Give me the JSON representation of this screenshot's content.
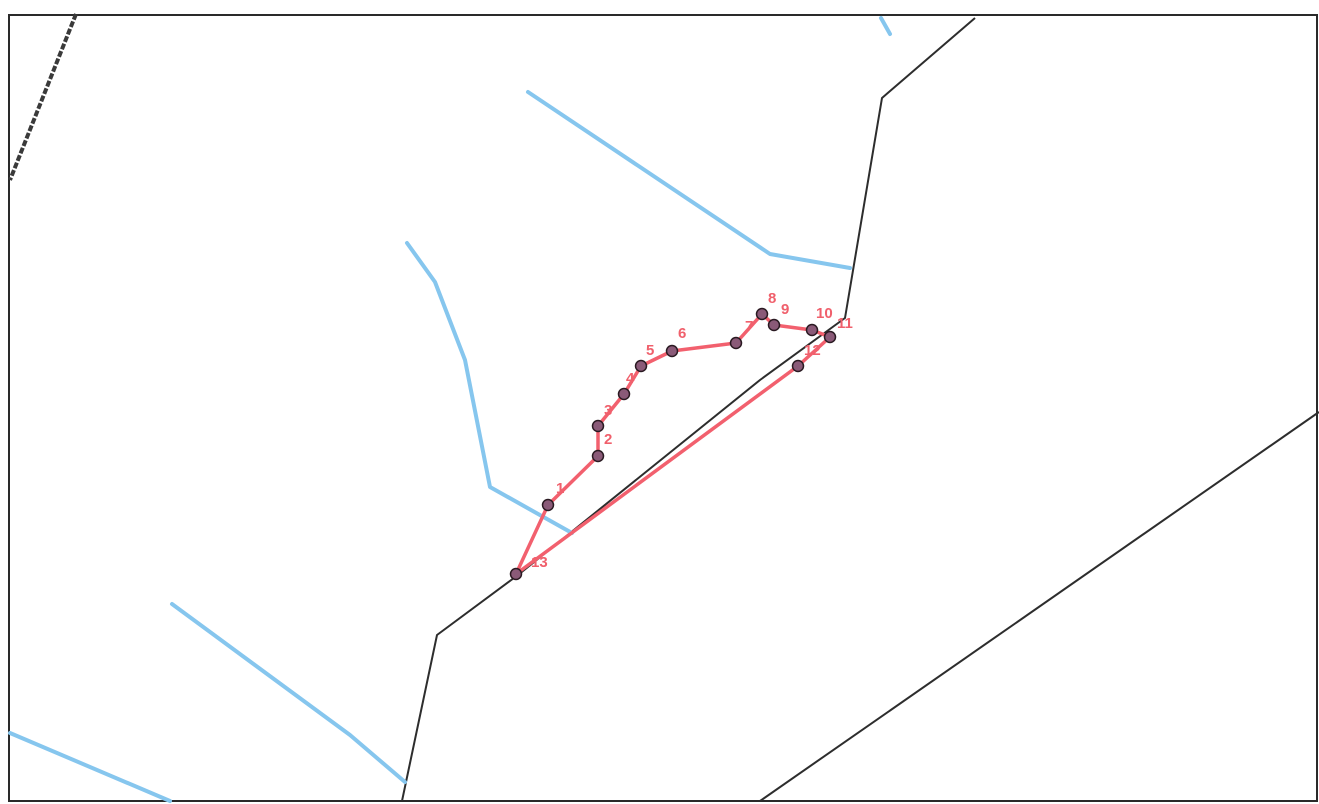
{
  "map": {
    "parcel_color": "#f2606e",
    "waterway_color": "#86c6ee",
    "boundary_color": "#2d2d2d",
    "vertex_labels": [
      "1",
      "2",
      "3",
      "4",
      "5",
      "6",
      "7",
      "8",
      "9",
      "10",
      "11",
      "12",
      "13"
    ]
  }
}
